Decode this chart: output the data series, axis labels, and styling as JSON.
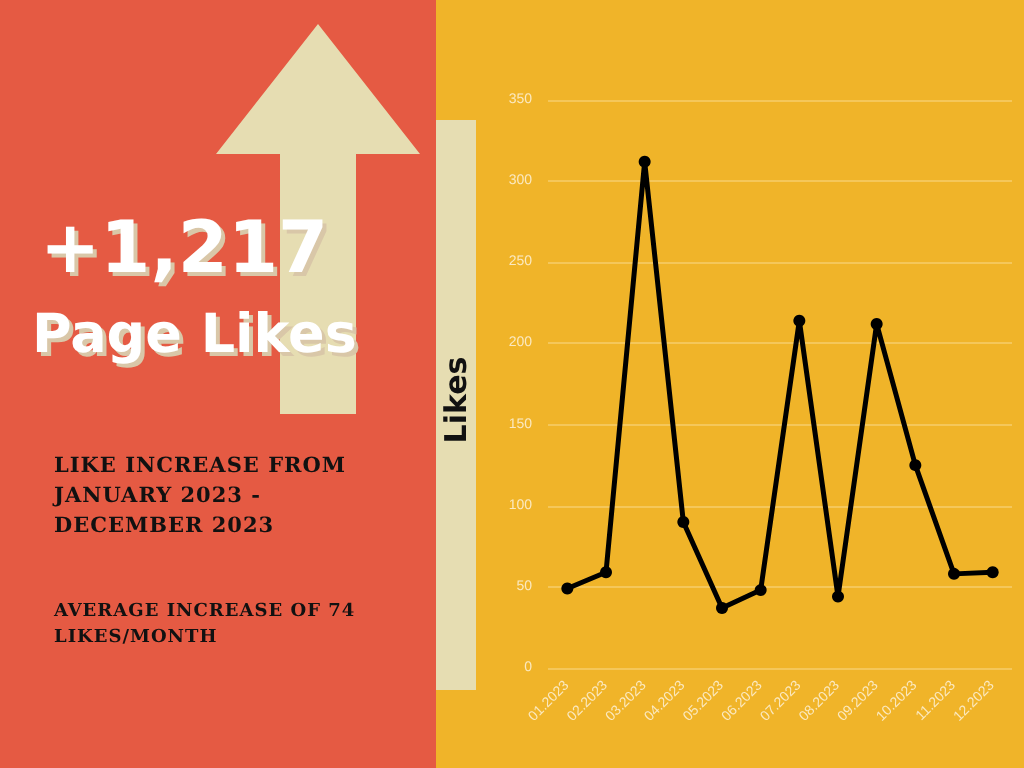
{
  "chart_data": {
    "type": "line",
    "title": "+1,217",
    "subtitle": "Page Likes",
    "ylabel": "Likes",
    "annotations": [
      "LIKE INCREASE FROM JANUARY 2023 - DECEMBER 2023",
      "AVERAGE INCREASE OF 74 LIKES/MONTH"
    ],
    "categories": [
      "01.2023",
      "02.2023",
      "03.2023",
      "04.2023",
      "05.2023",
      "06.2023",
      "07.2023",
      "08.2023",
      "09.2023",
      "10.2023",
      "11.2023",
      "12.2023"
    ],
    "series": [
      {
        "color": "#000000",
        "values": [
          49,
          59,
          312,
          90,
          37,
          48,
          214,
          44,
          212,
          125,
          58,
          59
        ]
      }
    ],
    "ylim": [
      0,
      350
    ],
    "yticks": [
      0,
      50,
      100,
      150,
      200,
      250,
      300,
      350
    ],
    "grid": "y",
    "marker": "circle",
    "line_style": "solid"
  }
}
